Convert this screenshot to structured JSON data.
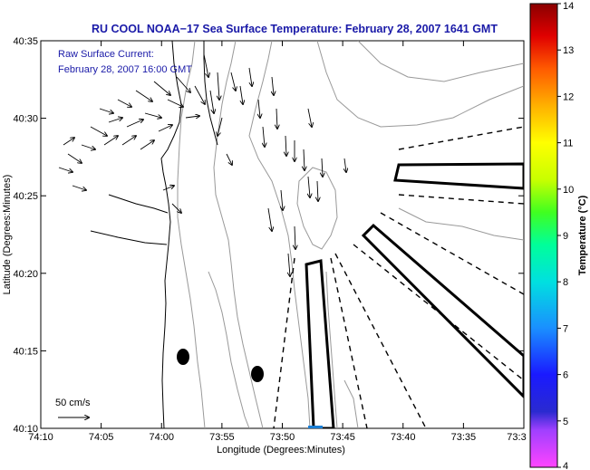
{
  "title": "RU COOL  NOAA−17  Sea Surface Temperature:  February 28, 2007 1641 GMT",
  "colors": {
    "title": "#1a1aa8",
    "annotation": "#1a1aa8",
    "coast": "#000000",
    "contour": "#999999",
    "bathy": "#aaaaaa",
    "marker": "#1a7fd6"
  },
  "legend": {
    "line1": "Raw Surface Current:",
    "line2": "February 28, 2007 16:00 GMT"
  },
  "scale": {
    "label": "50 cm/s"
  },
  "map": {
    "xlabel": "Longitude (Degrees:Minutes)",
    "ylabel": "Latitude (Degrees:Minutes)",
    "x_ticks": [
      "74:10",
      "74:05",
      "74:00",
      "73:55",
      "73:50",
      "73:45",
      "73:40",
      "73:35",
      "73:3"
    ],
    "y_ticks": [
      "40:35",
      "40:30",
      "40:25",
      "40:20",
      "40:15",
      "40:10"
    ]
  },
  "colorbar": {
    "label": "Temperature (°C)",
    "ticks": [
      "14",
      "13",
      "12",
      "11",
      "10",
      "9",
      "8",
      "7",
      "6",
      "5",
      "4"
    ]
  }
}
